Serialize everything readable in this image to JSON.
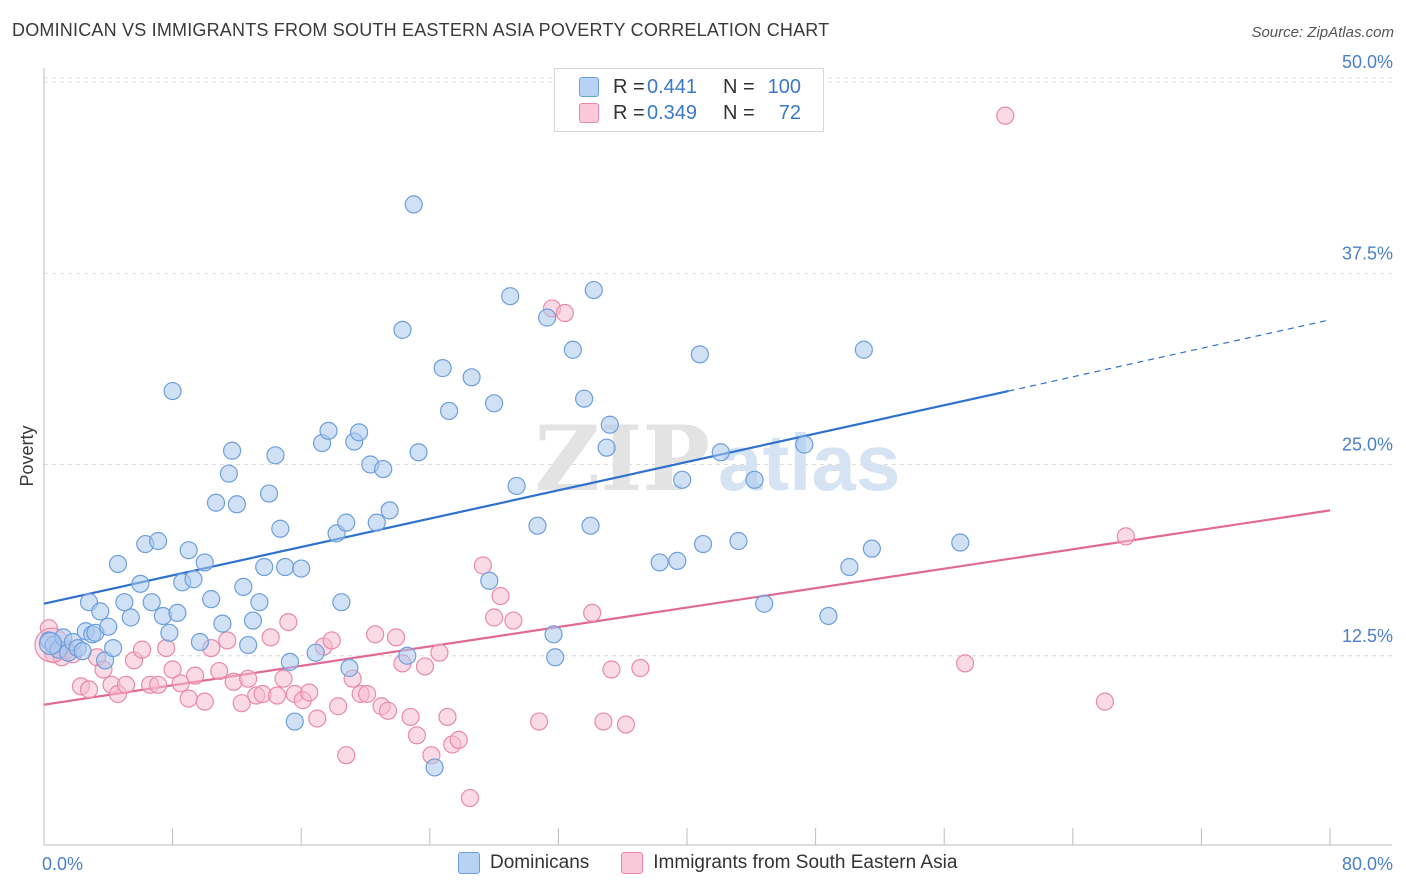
{
  "title": "DOMINICAN VS IMMIGRANTS FROM SOUTH EASTERN ASIA POVERTY CORRELATION CHART",
  "source": "Source: ZipAtlas.com",
  "colors": {
    "blue_fill": "#a9c8ef",
    "blue_stroke": "#6d9fdc",
    "blue_line": "#2e72cc",
    "pink_fill": "#f6bcd0",
    "pink_stroke": "#e98aa9",
    "pink_line": "#e06a95",
    "tick_text": "#4a7fcc"
  },
  "legend": {
    "rows": [
      {
        "r_label": "R =",
        "r_value": "0.441",
        "n_label": "N =",
        "n_value": "100"
      },
      {
        "r_label": "R =",
        "r_value": "0.349",
        "n_label": "N =",
        "n_value": "72"
      }
    ]
  },
  "bottom_legend": {
    "items": [
      "Dominicans",
      "Immigrants from South Eastern Asia"
    ]
  },
  "watermark": {
    "part1": "ZIP",
    "part2": "atlas"
  },
  "chart_data": {
    "type": "scatter",
    "title": "DOMINICAN VS IMMIGRANTS FROM SOUTH EASTERN ASIA POVERTY CORRELATION CHART",
    "xlabel": "",
    "ylabel": "Poverty",
    "xlim": [
      0,
      80
    ],
    "ylim": [
      0,
      50
    ],
    "x_tick_labels": [
      "0.0%",
      "80.0%"
    ],
    "y_ticks": [
      12.5,
      25.0,
      37.5,
      50.0
    ],
    "y_tick_labels": [
      "12.5%",
      "25.0%",
      "37.5%",
      "50.0%"
    ],
    "grid": true,
    "legend_position": "top-center",
    "series": [
      {
        "name": "Dominicans",
        "R": 0.441,
        "N": 100,
        "trend": {
          "x": [
            0,
            60
          ],
          "y": [
            15.9,
            29.8
          ],
          "dashed_extension": {
            "x": [
              60,
              80
            ],
            "y": [
              29.8,
              34.4
            ]
          }
        },
        "points": [
          [
            0.3,
            13.5
          ],
          [
            0.6,
            13.2
          ],
          [
            0.9,
            12.9
          ],
          [
            1.2,
            13.7
          ],
          [
            1.5,
            12.7
          ],
          [
            1.8,
            13.4
          ],
          [
            2.1,
            13.0
          ],
          [
            2.4,
            12.8
          ],
          [
            2.6,
            14.1
          ],
          [
            2.8,
            16.0
          ],
          [
            3.0,
            13.9
          ],
          [
            3.2,
            14.0
          ],
          [
            3.5,
            15.4
          ],
          [
            3.8,
            12.2
          ],
          [
            4.0,
            14.4
          ],
          [
            4.3,
            13.0
          ],
          [
            4.6,
            18.5
          ],
          [
            5.0,
            16.0
          ],
          [
            5.4,
            15.0
          ],
          [
            6.0,
            17.2
          ],
          [
            6.3,
            19.8
          ],
          [
            6.7,
            16.0
          ],
          [
            7.1,
            20.0
          ],
          [
            7.4,
            15.1
          ],
          [
            7.8,
            14.0
          ],
          [
            8.0,
            29.8
          ],
          [
            8.3,
            15.3
          ],
          [
            8.6,
            17.3
          ],
          [
            9.0,
            19.4
          ],
          [
            9.3,
            17.5
          ],
          [
            9.7,
            13.4
          ],
          [
            10.0,
            18.6
          ],
          [
            10.4,
            16.2
          ],
          [
            10.7,
            22.5
          ],
          [
            11.1,
            14.6
          ],
          [
            11.5,
            24.4
          ],
          [
            11.7,
            25.9
          ],
          [
            12.0,
            22.4
          ],
          [
            12.4,
            17.0
          ],
          [
            12.7,
            13.2
          ],
          [
            13.0,
            14.8
          ],
          [
            13.4,
            16.0
          ],
          [
            13.7,
            18.3
          ],
          [
            14.0,
            23.1
          ],
          [
            14.4,
            25.6
          ],
          [
            14.7,
            20.8
          ],
          [
            15.0,
            18.3
          ],
          [
            15.3,
            12.1
          ],
          [
            15.6,
            8.2
          ],
          [
            16.0,
            18.2
          ],
          [
            16.9,
            12.7
          ],
          [
            17.3,
            26.4
          ],
          [
            17.7,
            27.2
          ],
          [
            18.2,
            20.5
          ],
          [
            18.5,
            16.0
          ],
          [
            18.8,
            21.2
          ],
          [
            19.0,
            11.7
          ],
          [
            19.3,
            26.5
          ],
          [
            19.6,
            27.1
          ],
          [
            20.3,
            25.0
          ],
          [
            20.7,
            21.2
          ],
          [
            21.1,
            24.7
          ],
          [
            21.5,
            22.0
          ],
          [
            22.3,
            33.8
          ],
          [
            22.6,
            12.5
          ],
          [
            23.0,
            42.0
          ],
          [
            23.3,
            25.8
          ],
          [
            24.3,
            5.2
          ],
          [
            24.8,
            31.3
          ],
          [
            25.2,
            28.5
          ],
          [
            26.6,
            30.7
          ],
          [
            27.7,
            17.4
          ],
          [
            28.0,
            29.0
          ],
          [
            29.0,
            36.0
          ],
          [
            29.4,
            23.6
          ],
          [
            30.7,
            21.0
          ],
          [
            31.3,
            34.6
          ],
          [
            31.7,
            13.9
          ],
          [
            31.8,
            12.4
          ],
          [
            32.9,
            32.5
          ],
          [
            33.6,
            29.3
          ],
          [
            34.0,
            21.0
          ],
          [
            34.2,
            36.4
          ],
          [
            35.0,
            26.1
          ],
          [
            35.2,
            27.6
          ],
          [
            38.3,
            18.6
          ],
          [
            39.4,
            18.7
          ],
          [
            39.7,
            24.0
          ],
          [
            40.8,
            32.2
          ],
          [
            41.0,
            19.8
          ],
          [
            42.1,
            25.8
          ],
          [
            43.2,
            20.0
          ],
          [
            44.2,
            24.0
          ],
          [
            44.8,
            15.9
          ],
          [
            47.3,
            26.3
          ],
          [
            48.8,
            15.1
          ],
          [
            50.1,
            18.3
          ],
          [
            51.0,
            32.5
          ],
          [
            51.5,
            19.5
          ],
          [
            57.0,
            19.9
          ]
        ]
      },
      {
        "name": "Immigrants from South Eastern Asia",
        "R": 0.349,
        "N": 72,
        "trend": {
          "x": [
            0,
            80
          ],
          "y": [
            9.3,
            22.0
          ]
        },
        "points": [
          [
            0.3,
            14.3
          ],
          [
            0.6,
            12.6
          ],
          [
            0.8,
            13.0
          ],
          [
            1.1,
            12.4
          ],
          [
            1.4,
            12.9
          ],
          [
            1.8,
            12.6
          ],
          [
            2.3,
            10.5
          ],
          [
            2.8,
            10.3
          ],
          [
            3.3,
            12.4
          ],
          [
            3.7,
            11.6
          ],
          [
            4.2,
            10.6
          ],
          [
            4.6,
            10.0
          ],
          [
            5.1,
            10.6
          ],
          [
            5.6,
            12.2
          ],
          [
            6.1,
            12.9
          ],
          [
            6.6,
            10.6
          ],
          [
            7.1,
            10.6
          ],
          [
            7.6,
            13.0
          ],
          [
            8.0,
            11.6
          ],
          [
            8.5,
            10.7
          ],
          [
            9.0,
            9.7
          ],
          [
            9.4,
            11.2
          ],
          [
            10.0,
            9.5
          ],
          [
            10.4,
            13.0
          ],
          [
            10.9,
            11.5
          ],
          [
            11.4,
            13.5
          ],
          [
            11.8,
            10.8
          ],
          [
            12.3,
            9.4
          ],
          [
            12.7,
            11.0
          ],
          [
            13.2,
            9.9
          ],
          [
            13.6,
            10.0
          ],
          [
            14.1,
            13.7
          ],
          [
            14.5,
            9.9
          ],
          [
            14.9,
            11.0
          ],
          [
            15.2,
            14.7
          ],
          [
            15.6,
            10.0
          ],
          [
            16.1,
            9.6
          ],
          [
            16.5,
            10.1
          ],
          [
            17.0,
            8.4
          ],
          [
            17.4,
            13.1
          ],
          [
            17.9,
            13.5
          ],
          [
            18.3,
            9.2
          ],
          [
            18.8,
            6.0
          ],
          [
            19.2,
            11.0
          ],
          [
            19.7,
            10.0
          ],
          [
            20.1,
            10.0
          ],
          [
            20.6,
            13.9
          ],
          [
            21.0,
            9.2
          ],
          [
            21.4,
            8.9
          ],
          [
            21.9,
            13.7
          ],
          [
            22.3,
            12.0
          ],
          [
            22.8,
            8.5
          ],
          [
            23.2,
            7.3
          ],
          [
            23.7,
            11.8
          ],
          [
            24.1,
            6.0
          ],
          [
            24.6,
            12.7
          ],
          [
            25.1,
            8.5
          ],
          [
            25.4,
            6.7
          ],
          [
            25.8,
            7.0
          ],
          [
            26.5,
            3.2
          ],
          [
            27.3,
            18.4
          ],
          [
            28.0,
            15.0
          ],
          [
            28.4,
            16.4
          ],
          [
            29.2,
            14.8
          ],
          [
            30.8,
            8.2
          ],
          [
            31.6,
            35.2
          ],
          [
            32.4,
            34.9
          ],
          [
            34.1,
            15.3
          ],
          [
            34.8,
            8.2
          ],
          [
            35.3,
            11.6
          ],
          [
            36.2,
            8.0
          ],
          [
            37.1,
            11.7
          ]
        ],
        "extra_points": [
          [
            57.3,
            12.0
          ],
          [
            59.8,
            47.8
          ],
          [
            66.0,
            9.5
          ],
          [
            67.3,
            20.3
          ]
        ]
      }
    ]
  }
}
